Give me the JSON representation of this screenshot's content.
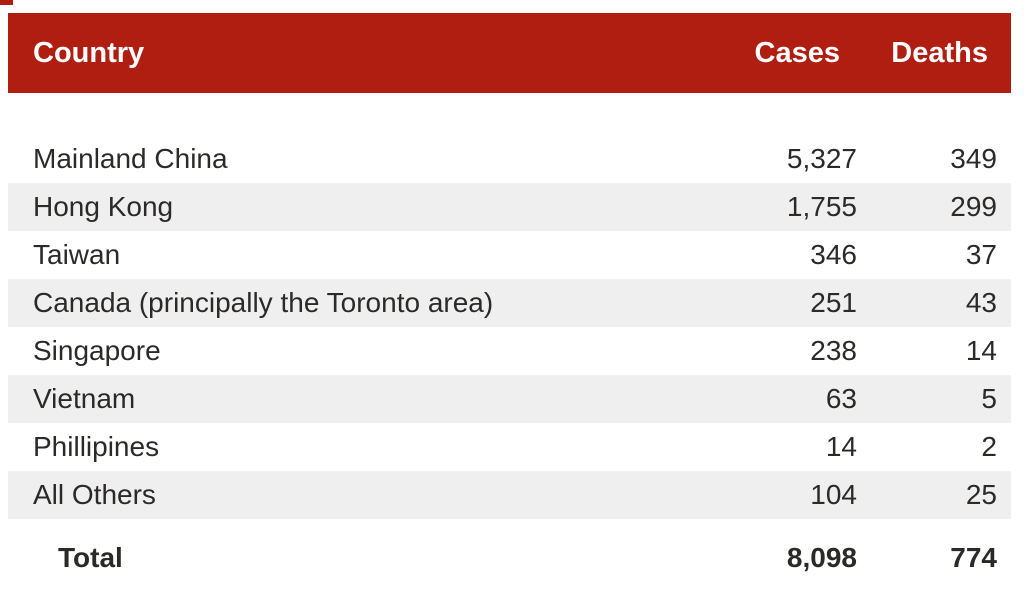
{
  "table": {
    "header": {
      "country": "Country",
      "cases": "Cases",
      "deaths": "Deaths"
    },
    "rows": [
      {
        "country": "Mainland China",
        "cases": "5,327",
        "deaths": "349"
      },
      {
        "country": "Hong Kong",
        "cases": "1,755",
        "deaths": "299"
      },
      {
        "country": "Taiwan",
        "cases": "346",
        "deaths": "37"
      },
      {
        "country": "Canada (principally the Toronto area)",
        "cases": "251",
        "deaths": "43"
      },
      {
        "country": "Singapore",
        "cases": "238",
        "deaths": "14"
      },
      {
        "country": "Vietnam",
        "cases": "63",
        "deaths": "5"
      },
      {
        "country": "Phillipines",
        "cases": "14",
        "deaths": "2"
      },
      {
        "country": "All Others",
        "cases": "104",
        "deaths": "25"
      }
    ],
    "total": {
      "label": "Total",
      "cases": "8,098",
      "deaths": "774"
    }
  },
  "colors": {
    "header_bg": "#b01e12",
    "header_text": "#ffffff",
    "stripe_bg": "#efefef",
    "row_text": "#2b2a29"
  },
  "chart_data": {
    "type": "table",
    "columns": [
      "Country",
      "Cases",
      "Deaths"
    ],
    "rows": [
      [
        "Mainland China",
        5327,
        349
      ],
      [
        "Hong Kong",
        1755,
        299
      ],
      [
        "Taiwan",
        346,
        37
      ],
      [
        "Canada (principally the Toronto area)",
        251,
        43
      ],
      [
        "Singapore",
        238,
        14
      ],
      [
        "Vietnam",
        63,
        5
      ],
      [
        "Phillipines",
        14,
        2
      ],
      [
        "All Others",
        104,
        25
      ]
    ],
    "total_row": [
      "Total",
      8098,
      774
    ],
    "layout_hints": {
      "header_background": "#b01e12",
      "zebra_striping": true,
      "numeric_alignment": "right"
    }
  }
}
